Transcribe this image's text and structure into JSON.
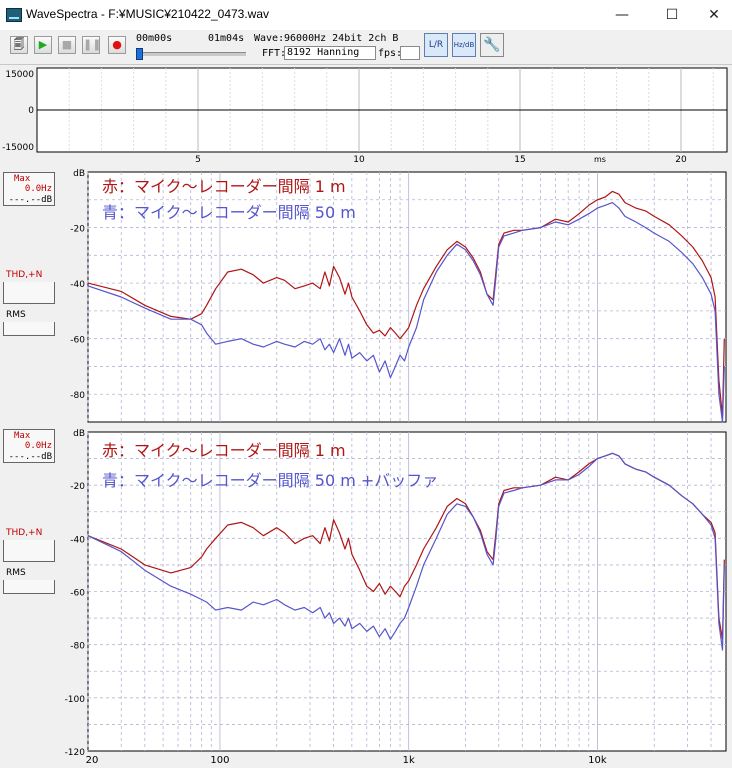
{
  "window": {
    "title": "WaveSpectra - F:¥MUSIC¥210422_0473.wav",
    "minimize_glyph": "—",
    "maximize_glyph": "☐",
    "close_glyph": "✕"
  },
  "toolbar": {
    "time_start": "00m00s",
    "time_end": "01m04s",
    "progress": 0.0,
    "wave_label": "Wave:",
    "wave_value": "96000Hz 24bit 2ch B",
    "fft_label": "FFT:",
    "fft_value": "8192 Hanning",
    "fps_label": "fps:",
    "fps_value": "",
    "buttons": [
      "open-icon",
      "play-icon",
      "stop-icon",
      "pause-icon",
      "record-icon",
      "lr-icon",
      "hz-db-icon",
      "wrench-icon"
    ],
    "lr_label": "L/R",
    "hzdb_label": "Hz/dB"
  },
  "waveform": {
    "y_ticks": [
      "15000",
      "0",
      "-15000"
    ],
    "x_ticks": [
      "5",
      "10",
      "15",
      "20"
    ],
    "x_unit": "ms",
    "colors": {
      "background": "#ffffff",
      "grid": "#c8c8c8",
      "line": "#000000"
    }
  },
  "panels": [
    {
      "side": {
        "max_label": "Max",
        "max_hz": "0.0Hz",
        "max_db": "---.--dB",
        "thd_label": "THD,+N",
        "rms_label": "RMS"
      },
      "legend": [
        "赤：マイク～レコーダー間隔 1 m",
        "青：マイク～レコーダー間隔 50 m"
      ]
    },
    {
      "side": {
        "max_label": "Max",
        "max_hz": "0.0Hz",
        "max_db": "---.--dB",
        "thd_label": "THD,+N",
        "rms_label": "RMS"
      },
      "legend": [
        "赤：マイク～レコーダー間隔 1 m",
        "青：マイク～レコーダー間隔 50 m +バッファ"
      ]
    }
  ],
  "chart_data": [
    {
      "type": "line",
      "x_scale": "log",
      "xlim": [
        20,
        48000
      ],
      "ylim": [
        -90,
        0
      ],
      "y_tick_labels": [
        "dB",
        "-20",
        "-40",
        "-60",
        "-80"
      ],
      "x_tick_labels": [],
      "grid": true,
      "colors": {
        "red": "#b01515",
        "blue": "#5555cc"
      },
      "series": [
        {
          "x": [
            20,
            30,
            40,
            55,
            70,
            80,
            85,
            95,
            110,
            130,
            150,
            170,
            200,
            220,
            250,
            280,
            310,
            340,
            360,
            380,
            400,
            430,
            460,
            480,
            500,
            550,
            600,
            650,
            700,
            750,
            800,
            850,
            900,
            950,
            1000,
            1100,
            1200,
            1400,
            1600,
            1800,
            2000,
            2200,
            2400,
            2600,
            2800,
            2900,
            3000,
            3200,
            3600,
            4000,
            5000,
            6000,
            7000,
            8000,
            9000,
            10000,
            11000,
            12000,
            13000,
            14000,
            16000,
            18000,
            20000,
            24000,
            28000,
            32000,
            36000,
            40000,
            42000,
            44000,
            46000,
            47000
          ],
          "y": [
            -40,
            -43,
            -48,
            -52,
            -53,
            -51,
            -48,
            -42,
            -36,
            -35,
            -37,
            -40,
            -38,
            -39,
            -42,
            -41,
            -40,
            -42,
            -36,
            -41,
            -34,
            -38,
            -44,
            -40,
            -45,
            -50,
            -55,
            -58,
            -57,
            -59,
            -56,
            -58,
            -60,
            -58,
            -56,
            -48,
            -42,
            -34,
            -28,
            -25,
            -27,
            -31,
            -36,
            -44,
            -46,
            -36,
            -26,
            -22,
            -21,
            -21,
            -20,
            -17,
            -18,
            -15,
            -12,
            -10,
            -9,
            -7,
            -8,
            -11,
            -13,
            -14,
            -16,
            -19,
            -23,
            -27,
            -32,
            -38,
            -45,
            -75,
            -88,
            -60
          ]
        },
        {
          "x": [
            20,
            30,
            40,
            55,
            70,
            80,
            85,
            95,
            110,
            130,
            150,
            170,
            200,
            220,
            250,
            280,
            310,
            340,
            360,
            380,
            400,
            430,
            460,
            480,
            500,
            550,
            600,
            650,
            700,
            750,
            800,
            850,
            900,
            950,
            1000,
            1100,
            1200,
            1400,
            1600,
            1800,
            2000,
            2200,
            2400,
            2600,
            2800,
            2900,
            3000,
            3200,
            3600,
            4000,
            5000,
            6000,
            7000,
            8000,
            9000,
            10000,
            11000,
            12000,
            13000,
            14000,
            16000,
            18000,
            20000,
            24000,
            28000,
            32000,
            36000,
            40000,
            42000,
            44000,
            46000,
            47000
          ],
          "y": [
            -41,
            -45,
            -49,
            -53,
            -53,
            -55,
            -58,
            -62,
            -61,
            -60,
            -62,
            -63,
            -61,
            -62,
            -63,
            -61,
            -62,
            -60,
            -64,
            -62,
            -65,
            -60,
            -66,
            -62,
            -67,
            -65,
            -68,
            -66,
            -72,
            -68,
            -74,
            -70,
            -66,
            -68,
            -63,
            -56,
            -46,
            -36,
            -30,
            -26,
            -28,
            -32,
            -37,
            -44,
            -48,
            -38,
            -27,
            -23,
            -22,
            -21,
            -20,
            -18,
            -19,
            -17,
            -15,
            -13,
            -12,
            -11,
            -13,
            -16,
            -18,
            -20,
            -22,
            -25,
            -29,
            -33,
            -38,
            -44,
            -50,
            -80,
            -90,
            -70
          ]
        }
      ]
    },
    {
      "type": "line",
      "x_scale": "log",
      "xlim": [
        20,
        48000
      ],
      "ylim": [
        -120,
        0
      ],
      "y_tick_labels": [
        "dB",
        "-20",
        "-40",
        "-60",
        "-80",
        "-100",
        "-120"
      ],
      "x_tick_labels": [
        "20",
        "100",
        "1k",
        "10k"
      ],
      "grid": true,
      "colors": {
        "red": "#b01515",
        "blue": "#5555cc"
      },
      "series": [
        {
          "x": [
            20,
            30,
            40,
            55,
            70,
            80,
            85,
            95,
            110,
            130,
            150,
            170,
            200,
            220,
            250,
            280,
            310,
            340,
            360,
            380,
            400,
            430,
            460,
            480,
            500,
            550,
            600,
            650,
            700,
            750,
            800,
            850,
            900,
            950,
            1000,
            1100,
            1200,
            1400,
            1600,
            1800,
            2000,
            2200,
            2400,
            2600,
            2800,
            2900,
            3000,
            3200,
            3600,
            4000,
            5000,
            6000,
            7000,
            8000,
            9000,
            10000,
            11000,
            12000,
            13000,
            14000,
            16000,
            18000,
            20000,
            24000,
            28000,
            32000,
            36000,
            40000,
            42000,
            44000,
            46000,
            47000
          ],
          "y": [
            -39,
            -44,
            -50,
            -53,
            -51,
            -47,
            -44,
            -40,
            -35,
            -34,
            -36,
            -39,
            -36,
            -38,
            -42,
            -40,
            -39,
            -42,
            -36,
            -41,
            -33,
            -38,
            -44,
            -40,
            -46,
            -52,
            -58,
            -60,
            -57,
            -61,
            -58,
            -60,
            -62,
            -58,
            -56,
            -50,
            -44,
            -36,
            -28,
            -25,
            -27,
            -32,
            -37,
            -45,
            -48,
            -38,
            -27,
            -22,
            -21,
            -21,
            -20,
            -17,
            -18,
            -15,
            -12,
            -10,
            -9,
            -8,
            -9,
            -12,
            -14,
            -15,
            -17,
            -20,
            -24,
            -27,
            -31,
            -34,
            -38,
            -70,
            -78,
            -48
          ]
        },
        {
          "x": [
            20,
            30,
            40,
            55,
            70,
            80,
            85,
            95,
            110,
            130,
            150,
            170,
            200,
            220,
            250,
            280,
            310,
            340,
            360,
            380,
            400,
            430,
            460,
            480,
            500,
            550,
            600,
            650,
            700,
            750,
            800,
            850,
            900,
            950,
            1000,
            1100,
            1200,
            1400,
            1600,
            1800,
            2000,
            2200,
            2400,
            2600,
            2800,
            2900,
            3000,
            3200,
            3600,
            4000,
            5000,
            6000,
            7000,
            8000,
            9000,
            10000,
            11000,
            12000,
            13000,
            14000,
            16000,
            18000,
            20000,
            24000,
            28000,
            32000,
            36000,
            40000,
            42000,
            44000,
            46000,
            47000
          ],
          "y": [
            -39,
            -45,
            -52,
            -58,
            -61,
            -63,
            -64,
            -67,
            -66,
            -67,
            -64,
            -65,
            -63,
            -65,
            -67,
            -66,
            -68,
            -66,
            -70,
            -68,
            -72,
            -70,
            -73,
            -70,
            -74,
            -72,
            -75,
            -73,
            -77,
            -74,
            -78,
            -75,
            -72,
            -70,
            -66,
            -58,
            -50,
            -40,
            -31,
            -27,
            -28,
            -32,
            -38,
            -46,
            -50,
            -40,
            -28,
            -23,
            -22,
            -21,
            -20,
            -18,
            -18,
            -16,
            -13,
            -10,
            -9,
            -8,
            -9,
            -12,
            -14,
            -15,
            -17,
            -20,
            -24,
            -27,
            -31,
            -35,
            -40,
            -72,
            -82,
            -50
          ]
        }
      ]
    }
  ]
}
